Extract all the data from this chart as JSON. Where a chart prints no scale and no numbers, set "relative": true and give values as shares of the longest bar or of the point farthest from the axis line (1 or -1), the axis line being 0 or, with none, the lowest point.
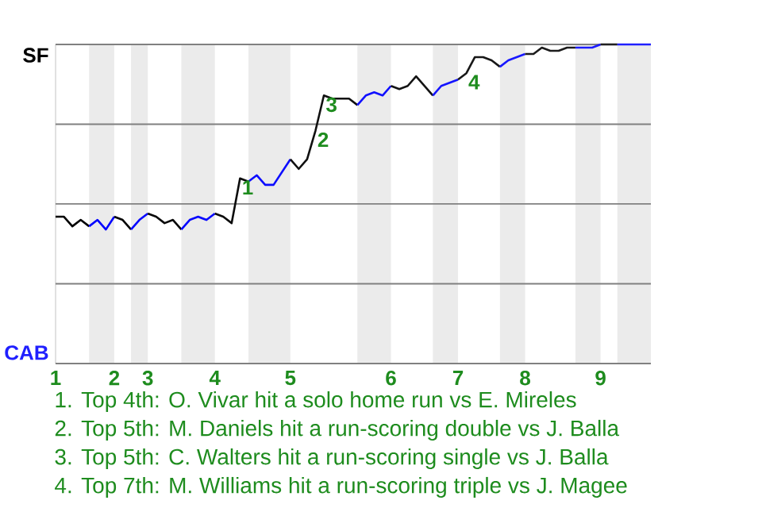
{
  "chart_data": {
    "type": "line",
    "relative": true,
    "categories": [
      "1",
      null,
      null,
      null,
      null,
      null,
      null,
      "2",
      null,
      null,
      null,
      "3",
      null,
      null,
      null,
      null,
      null,
      null,
      null,
      "4",
      null,
      null,
      null,
      null,
      null,
      null,
      null,
      null,
      "5",
      null,
      null,
      null,
      null,
      null,
      null,
      null,
      null,
      null,
      null,
      null,
      "6",
      null,
      null,
      null,
      null,
      null,
      null,
      null,
      "7",
      null,
      null,
      null,
      null,
      null,
      null,
      null,
      "8",
      null,
      null,
      null,
      null,
      null,
      null,
      null,
      null,
      "9",
      null,
      null,
      null,
      null,
      null,
      null
    ],
    "series": [
      {
        "color": "#000000",
        "values": [
          0.46,
          0.46,
          0.43,
          0.45,
          0.43,
          null,
          null,
          null,
          null,
          null,
          null,
          null,
          null,
          null,
          null,
          null,
          null,
          null,
          null,
          null,
          null,
          null,
          null,
          null,
          null,
          null,
          null,
          null,
          null,
          null,
          null,
          null,
          null,
          null,
          null,
          null,
          null,
          null,
          null,
          null,
          null,
          null,
          null,
          null,
          null,
          null,
          null,
          null,
          null,
          null,
          null,
          null,
          null,
          null,
          null,
          null,
          null,
          null,
          null,
          null,
          null,
          null,
          null,
          null,
          null,
          null,
          null,
          null,
          null,
          null,
          null,
          null
        ]
      },
      {
        "color": "#0000ff",
        "values": [
          null,
          null,
          null,
          null,
          0.43,
          0.45,
          0.42,
          0.46,
          null,
          null,
          null,
          null,
          null,
          null,
          null,
          null,
          null,
          null,
          null,
          null,
          null,
          null,
          null,
          null,
          null,
          null,
          null,
          null,
          null,
          null,
          null,
          null,
          null,
          null,
          null,
          null,
          null,
          null,
          null,
          null,
          null,
          null,
          null,
          null,
          null,
          null,
          null,
          null,
          null,
          null,
          null,
          null,
          null,
          null,
          null,
          null,
          null,
          null,
          null,
          null,
          null,
          null,
          null,
          null,
          null,
          null,
          null,
          null,
          null,
          null,
          null,
          null
        ]
      },
      {
        "color": "#040404",
        "values": [
          null,
          null,
          null,
          null,
          null,
          null,
          null,
          0.46,
          0.45,
          0.42,
          null,
          null,
          null,
          null,
          null,
          null,
          null,
          null,
          null,
          null,
          null,
          null,
          null,
          null,
          null,
          null,
          null,
          null,
          null,
          null,
          null,
          null,
          null,
          null,
          null,
          null,
          null,
          null,
          null,
          null,
          null,
          null,
          null,
          null,
          null,
          null,
          null,
          null,
          null,
          null,
          null,
          null,
          null,
          null,
          null,
          null,
          null,
          null,
          null,
          null,
          null,
          null,
          null,
          null,
          null,
          null,
          null,
          null,
          null,
          null,
          null,
          null
        ]
      },
      {
        "color": "#0404ff",
        "values": [
          null,
          null,
          null,
          null,
          null,
          null,
          null,
          null,
          null,
          0.42,
          0.45,
          0.47,
          null,
          null,
          null,
          null,
          null,
          null,
          null,
          null,
          null,
          null,
          null,
          null,
          null,
          null,
          null,
          null,
          null,
          null,
          null,
          null,
          null,
          null,
          null,
          null,
          null,
          null,
          null,
          null,
          null,
          null,
          null,
          null,
          null,
          null,
          null,
          null,
          null,
          null,
          null,
          null,
          null,
          null,
          null,
          null,
          null,
          null,
          null,
          null,
          null,
          null,
          null,
          null,
          null,
          null,
          null,
          null,
          null,
          null,
          null,
          null
        ]
      },
      {
        "color": "#080808",
        "values": [
          null,
          null,
          null,
          null,
          null,
          null,
          null,
          null,
          null,
          null,
          null,
          0.47,
          0.46,
          0.44,
          0.45,
          0.42,
          null,
          null,
          null,
          null,
          null,
          null,
          null,
          null,
          null,
          null,
          null,
          null,
          null,
          null,
          null,
          null,
          null,
          null,
          null,
          null,
          null,
          null,
          null,
          null,
          null,
          null,
          null,
          null,
          null,
          null,
          null,
          null,
          null,
          null,
          null,
          null,
          null,
          null,
          null,
          null,
          null,
          null,
          null,
          null,
          null,
          null,
          null,
          null,
          null,
          null,
          null,
          null,
          null,
          null,
          null,
          null
        ]
      },
      {
        "color": "#0808ff",
        "values": [
          null,
          null,
          null,
          null,
          null,
          null,
          null,
          null,
          null,
          null,
          null,
          null,
          null,
          null,
          null,
          0.42,
          0.45,
          0.46,
          0.45,
          0.47,
          null,
          null,
          null,
          null,
          null,
          null,
          null,
          null,
          null,
          null,
          null,
          null,
          null,
          null,
          null,
          null,
          null,
          null,
          null,
          null,
          null,
          null,
          null,
          null,
          null,
          null,
          null,
          null,
          null,
          null,
          null,
          null,
          null,
          null,
          null,
          null,
          null,
          null,
          null,
          null,
          null,
          null,
          null,
          null,
          null,
          null,
          null,
          null,
          null,
          null,
          null,
          null
        ]
      },
      {
        "color": "#0c0c0c",
        "values": [
          null,
          null,
          null,
          null,
          null,
          null,
          null,
          null,
          null,
          null,
          null,
          null,
          null,
          null,
          null,
          null,
          null,
          null,
          null,
          0.47,
          0.46,
          0.44,
          0.58,
          0.57,
          null,
          null,
          null,
          null,
          null,
          null,
          null,
          null,
          null,
          null,
          null,
          null,
          null,
          null,
          null,
          null,
          null,
          null,
          null,
          null,
          null,
          null,
          null,
          null,
          null,
          null,
          null,
          null,
          null,
          null,
          null,
          null,
          null,
          null,
          null,
          null,
          null,
          null,
          null,
          null,
          null,
          null,
          null,
          null,
          null,
          null,
          null,
          null
        ]
      },
      {
        "color": "#0c0cff",
        "values": [
          null,
          null,
          null,
          null,
          null,
          null,
          null,
          null,
          null,
          null,
          null,
          null,
          null,
          null,
          null,
          null,
          null,
          null,
          null,
          null,
          null,
          null,
          null,
          0.57,
          0.59,
          0.56,
          0.56,
          0.6,
          0.64,
          null,
          null,
          null,
          null,
          null,
          null,
          null,
          null,
          null,
          null,
          null,
          null,
          null,
          null,
          null,
          null,
          null,
          null,
          null,
          null,
          null,
          null,
          null,
          null,
          null,
          null,
          null,
          null,
          null,
          null,
          null,
          null,
          null,
          null,
          null,
          null,
          null,
          null,
          null,
          null,
          null,
          null,
          null
        ]
      },
      {
        "color": "#101010",
        "values": [
          null,
          null,
          null,
          null,
          null,
          null,
          null,
          null,
          null,
          null,
          null,
          null,
          null,
          null,
          null,
          null,
          null,
          null,
          null,
          null,
          null,
          null,
          null,
          null,
          null,
          null,
          null,
          null,
          0.64,
          0.61,
          0.64,
          0.73,
          0.84,
          0.83,
          0.83,
          0.83,
          0.81,
          null,
          null,
          null,
          null,
          null,
          null,
          null,
          null,
          null,
          null,
          null,
          null,
          null,
          null,
          null,
          null,
          null,
          null,
          null,
          null,
          null,
          null,
          null,
          null,
          null,
          null,
          null,
          null,
          null,
          null,
          null,
          null,
          null,
          null,
          null
        ]
      },
      {
        "color": "#1010ff",
        "values": [
          null,
          null,
          null,
          null,
          null,
          null,
          null,
          null,
          null,
          null,
          null,
          null,
          null,
          null,
          null,
          null,
          null,
          null,
          null,
          null,
          null,
          null,
          null,
          null,
          null,
          null,
          null,
          null,
          null,
          null,
          null,
          null,
          null,
          null,
          null,
          null,
          0.81,
          0.84,
          0.85,
          0.84,
          0.87,
          null,
          null,
          null,
          null,
          null,
          null,
          null,
          null,
          null,
          null,
          null,
          null,
          null,
          null,
          null,
          null,
          null,
          null,
          null,
          null,
          null,
          null,
          null,
          null,
          null,
          null,
          null,
          null,
          null,
          null,
          null
        ]
      },
      {
        "color": "#141414",
        "values": [
          null,
          null,
          null,
          null,
          null,
          null,
          null,
          null,
          null,
          null,
          null,
          null,
          null,
          null,
          null,
          null,
          null,
          null,
          null,
          null,
          null,
          null,
          null,
          null,
          null,
          null,
          null,
          null,
          null,
          null,
          null,
          null,
          null,
          null,
          null,
          null,
          null,
          null,
          null,
          null,
          0.87,
          0.86,
          0.87,
          0.9,
          0.87,
          0.84,
          null,
          null,
          null,
          null,
          null,
          null,
          null,
          null,
          null,
          null,
          null,
          null,
          null,
          null,
          null,
          null,
          null,
          null,
          null,
          null,
          null,
          null,
          null,
          null,
          null,
          null
        ]
      },
      {
        "color": "#1414ff",
        "values": [
          null,
          null,
          null,
          null,
          null,
          null,
          null,
          null,
          null,
          null,
          null,
          null,
          null,
          null,
          null,
          null,
          null,
          null,
          null,
          null,
          null,
          null,
          null,
          null,
          null,
          null,
          null,
          null,
          null,
          null,
          null,
          null,
          null,
          null,
          null,
          null,
          null,
          null,
          null,
          null,
          null,
          null,
          null,
          null,
          null,
          0.84,
          0.87,
          0.88,
          0.89,
          null,
          null,
          null,
          null,
          null,
          null,
          null,
          null,
          null,
          null,
          null,
          null,
          null,
          null,
          null,
          null,
          null,
          null,
          null,
          null,
          null,
          null,
          null
        ]
      },
      {
        "color": "#181818",
        "values": [
          null,
          null,
          null,
          null,
          null,
          null,
          null,
          null,
          null,
          null,
          null,
          null,
          null,
          null,
          null,
          null,
          null,
          null,
          null,
          null,
          null,
          null,
          null,
          null,
          null,
          null,
          null,
          null,
          null,
          null,
          null,
          null,
          null,
          null,
          null,
          null,
          null,
          null,
          null,
          null,
          null,
          null,
          null,
          null,
          null,
          null,
          null,
          null,
          0.89,
          0.91,
          0.96,
          0.96,
          0.95,
          0.93,
          null,
          null,
          null,
          null,
          null,
          null,
          null,
          null,
          null,
          null,
          null,
          null,
          null,
          null,
          null,
          null,
          null,
          null
        ]
      },
      {
        "color": "#1818ff",
        "values": [
          null,
          null,
          null,
          null,
          null,
          null,
          null,
          null,
          null,
          null,
          null,
          null,
          null,
          null,
          null,
          null,
          null,
          null,
          null,
          null,
          null,
          null,
          null,
          null,
          null,
          null,
          null,
          null,
          null,
          null,
          null,
          null,
          null,
          null,
          null,
          null,
          null,
          null,
          null,
          null,
          null,
          null,
          null,
          null,
          null,
          null,
          null,
          null,
          null,
          null,
          null,
          null,
          null,
          0.93,
          0.95,
          0.96,
          0.97,
          null,
          null,
          null,
          null,
          null,
          null,
          null,
          null,
          null,
          null,
          null,
          null,
          null,
          null,
          null
        ]
      },
      {
        "color": "#1c1c1c",
        "values": [
          null,
          null,
          null,
          null,
          null,
          null,
          null,
          null,
          null,
          null,
          null,
          null,
          null,
          null,
          null,
          null,
          null,
          null,
          null,
          null,
          null,
          null,
          null,
          null,
          null,
          null,
          null,
          null,
          null,
          null,
          null,
          null,
          null,
          null,
          null,
          null,
          null,
          null,
          null,
          null,
          null,
          null,
          null,
          null,
          null,
          null,
          null,
          null,
          null,
          null,
          null,
          null,
          null,
          null,
          null,
          null,
          0.97,
          0.97,
          0.99,
          0.98,
          0.98,
          0.99,
          0.99,
          null,
          null,
          null,
          null,
          null,
          null,
          null,
          null,
          null
        ]
      },
      {
        "color": "#1c1cff",
        "values": [
          null,
          null,
          null,
          null,
          null,
          null,
          null,
          null,
          null,
          null,
          null,
          null,
          null,
          null,
          null,
          null,
          null,
          null,
          null,
          null,
          null,
          null,
          null,
          null,
          null,
          null,
          null,
          null,
          null,
          null,
          null,
          null,
          null,
          null,
          null,
          null,
          null,
          null,
          null,
          null,
          null,
          null,
          null,
          null,
          null,
          null,
          null,
          null,
          null,
          null,
          null,
          null,
          null,
          null,
          null,
          null,
          null,
          null,
          null,
          null,
          null,
          null,
          0.99,
          0.99,
          0.99,
          1,
          null,
          null,
          null,
          null,
          null,
          null
        ]
      },
      {
        "color": "#202020",
        "values": [
          null,
          null,
          null,
          null,
          null,
          null,
          null,
          null,
          null,
          null,
          null,
          null,
          null,
          null,
          null,
          null,
          null,
          null,
          null,
          null,
          null,
          null,
          null,
          null,
          null,
          null,
          null,
          null,
          null,
          null,
          null,
          null,
          null,
          null,
          null,
          null,
          null,
          null,
          null,
          null,
          null,
          null,
          null,
          null,
          null,
          null,
          null,
          null,
          null,
          null,
          null,
          null,
          null,
          null,
          null,
          null,
          null,
          null,
          null,
          null,
          null,
          null,
          null,
          null,
          null,
          1,
          1,
          1,
          null,
          null,
          null,
          null
        ]
      },
      {
        "color": "#2020ff",
        "values": [
          null,
          null,
          null,
          null,
          null,
          null,
          null,
          null,
          null,
          null,
          null,
          null,
          null,
          null,
          null,
          null,
          null,
          null,
          null,
          null,
          null,
          null,
          null,
          null,
          null,
          null,
          null,
          null,
          null,
          null,
          null,
          null,
          null,
          null,
          null,
          null,
          null,
          null,
          null,
          null,
          null,
          null,
          null,
          null,
          null,
          null,
          null,
          null,
          null,
          null,
          null,
          null,
          null,
          null,
          null,
          null,
          null,
          null,
          null,
          null,
          null,
          null,
          null,
          null,
          null,
          null,
          null,
          1,
          1,
          1,
          1,
          1
        ]
      }
    ],
    "grid": "y",
    "annotations": [
      "SF",
      "CAB",
      {
        "text": "1",
        "y": 0.58
      },
      {
        "text": "2",
        "y": 0.73
      },
      {
        "text": "3",
        "y": 0.84
      },
      {
        "text": "4",
        "y": 0.91
      },
      "1. Top 4th: O. Vivar hit a solo home run vs E. Mireles",
      "2. Top 5th: M. Daniels hit a run-scoring double vs J. Balla",
      "3. Top 5th: C. Walters hit a run-scoring single vs J. Balla",
      "4. Top 7th: M. Williams hit a run-scoring triple vs J. Magee"
    ]
  }
}
